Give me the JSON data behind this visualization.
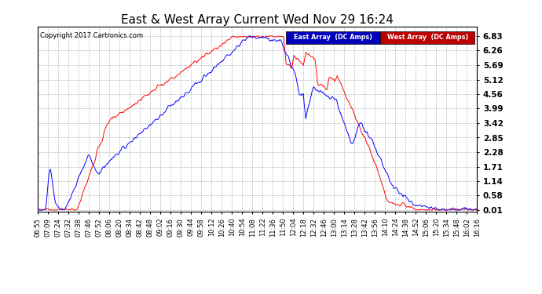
{
  "title": "East & West Array Current Wed Nov 29 16:24",
  "copyright": "Copyright 2017 Cartronics.com",
  "legend_east": "East Array  (DC Amps)",
  "legend_west": "West Array  (DC Amps)",
  "east_color": "#0000ff",
  "west_color": "#ff0000",
  "legend_east_bg": "#0000bb",
  "legend_west_bg": "#bb0000",
  "bg_color": "#ffffff",
  "plot_bg_color": "#ffffff",
  "grid_color": "#aaaaaa",
  "yticks": [
    0.01,
    0.58,
    1.14,
    1.71,
    2.28,
    2.85,
    3.42,
    3.99,
    4.56,
    5.12,
    5.69,
    6.26,
    6.83
  ],
  "ylim": [
    -0.05,
    7.2
  ],
  "xtick_labels": [
    "06:55",
    "07:09",
    "07:24",
    "07:32",
    "07:38",
    "07:46",
    "07:52",
    "08:06",
    "08:20",
    "08:34",
    "08:42",
    "08:48",
    "09:02",
    "09:16",
    "09:30",
    "09:44",
    "09:58",
    "10:12",
    "10:26",
    "10:40",
    "10:54",
    "11:08",
    "11:22",
    "11:36",
    "11:50",
    "12:04",
    "12:18",
    "12:32",
    "12:46",
    "13:00",
    "13:14",
    "13:28",
    "13:42",
    "13:56",
    "14:10",
    "14:24",
    "14:38",
    "14:52",
    "15:06",
    "15:20",
    "15:34",
    "15:48",
    "16:02",
    "16:16"
  ],
  "title_fontsize": 11,
  "label_fontsize": 6,
  "ytick_fontsize": 7.5,
  "copyright_fontsize": 6
}
